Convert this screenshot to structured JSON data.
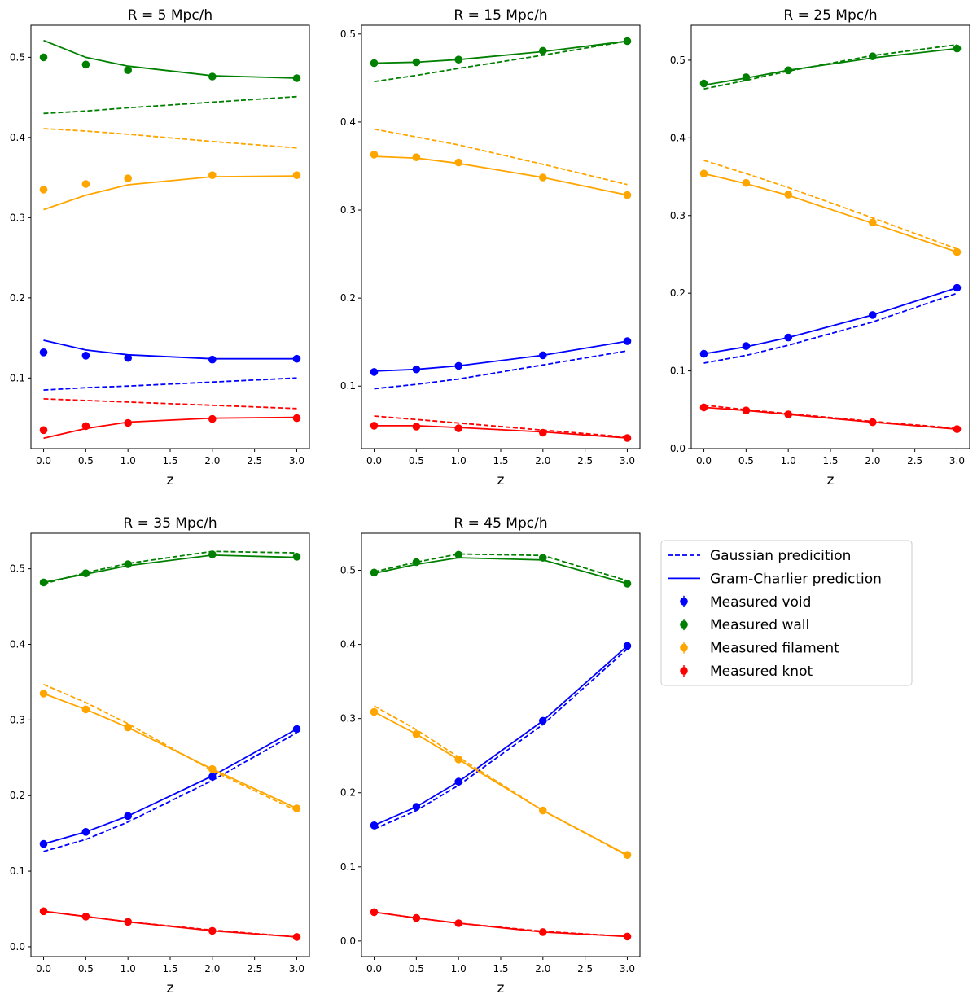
{
  "figure": {
    "xlabel": "z",
    "legend": {
      "location": "right of bottom row",
      "entries": [
        {
          "label": "Gaussian predicition",
          "kind": "dashed-line",
          "color": "#0000ff"
        },
        {
          "label": "Gram-Charlier prediction",
          "kind": "solid-line",
          "color": "#0000ff"
        },
        {
          "label": "Measured void",
          "kind": "marker",
          "color": "#0000ff"
        },
        {
          "label": "Measured wall",
          "kind": "marker",
          "color": "#008000"
        },
        {
          "label": "Measured filament",
          "kind": "marker",
          "color": "#ffa500"
        },
        {
          "label": "Measured knot",
          "kind": "marker",
          "color": "#ff0000"
        }
      ]
    },
    "colors": {
      "void": "#0000ff",
      "wall": "#008000",
      "filament": "#ffa500",
      "knot": "#ff0000"
    }
  },
  "chart_data": [
    {
      "type": "line",
      "title": "R = 5 Mpc/h",
      "xlabel": "z",
      "x": [
        0.0,
        0.5,
        1.0,
        2.0,
        3.0
      ],
      "xlim": [
        -0.15,
        3.15
      ],
      "ylim": [
        0.012,
        0.54
      ],
      "xticks": [
        0.0,
        0.5,
        1.0,
        1.5,
        2.0,
        2.5,
        3.0
      ],
      "xtick_labels": [
        "0.0",
        "0.5",
        "1.0",
        "1.5",
        "2.0",
        "2.5",
        "3.0"
      ],
      "yticks": [
        0.1,
        0.2,
        0.3,
        0.4,
        0.5
      ],
      "ytick_labels": [
        "0.1",
        "0.2",
        "0.3",
        "0.4",
        "0.5"
      ],
      "series": [
        {
          "name": "void",
          "color": "#0000ff",
          "gaussian": [
            0.085,
            0.088,
            0.09,
            0.095,
            0.1
          ],
          "gram_charlier": [
            0.147,
            0.135,
            0.129,
            0.124,
            0.124
          ],
          "measured": [
            0.132,
            0.128,
            0.125,
            0.123,
            0.124
          ]
        },
        {
          "name": "wall",
          "color": "#008000",
          "gaussian": [
            0.43,
            0.433,
            0.437,
            0.444,
            0.451
          ],
          "gram_charlier": [
            0.521,
            0.5,
            0.489,
            0.477,
            0.474
          ],
          "measured": [
            0.5,
            0.491,
            0.484,
            0.476,
            0.474
          ]
        },
        {
          "name": "filament",
          "color": "#ffa500",
          "gaussian": [
            0.411,
            0.408,
            0.404,
            0.395,
            0.387
          ],
          "gram_charlier": [
            0.31,
            0.328,
            0.341,
            0.351,
            0.352
          ],
          "measured": [
            0.335,
            0.342,
            0.349,
            0.353,
            0.353
          ]
        },
        {
          "name": "knot",
          "color": "#ff0000",
          "gaussian": [
            0.074,
            0.072,
            0.07,
            0.066,
            0.062
          ],
          "gram_charlier": [
            0.025,
            0.037,
            0.045,
            0.05,
            0.051
          ],
          "measured": [
            0.035,
            0.04,
            0.044,
            0.049,
            0.05
          ]
        }
      ]
    },
    {
      "type": "line",
      "title": "R = 15 Mpc/h",
      "xlabel": "z",
      "x": [
        0.0,
        0.5,
        1.0,
        2.0,
        3.0
      ],
      "xlim": [
        -0.15,
        3.15
      ],
      "ylim": [
        0.029,
        0.51
      ],
      "xticks": [
        0.0,
        0.5,
        1.0,
        1.5,
        2.0,
        2.5,
        3.0
      ],
      "xtick_labels": [
        "0.0",
        "0.5",
        "1.0",
        "1.5",
        "2.0",
        "2.5",
        "3.0"
      ],
      "yticks": [
        0.1,
        0.2,
        0.3,
        0.4,
        0.5
      ],
      "ytick_labels": [
        "0.1",
        "0.2",
        "0.3",
        "0.4",
        "0.5"
      ],
      "series": [
        {
          "name": "void",
          "color": "#0000ff",
          "gaussian": [
            0.097,
            0.102,
            0.108,
            0.124,
            0.14
          ],
          "gram_charlier": [
            0.117,
            0.119,
            0.123,
            0.135,
            0.151
          ],
          "measured": [
            0.116,
            0.119,
            0.123,
            0.135,
            0.151
          ]
        },
        {
          "name": "wall",
          "color": "#008000",
          "gaussian": [
            0.446,
            0.453,
            0.461,
            0.476,
            0.492
          ],
          "gram_charlier": [
            0.467,
            0.468,
            0.471,
            0.48,
            0.492
          ],
          "measured": [
            0.467,
            0.468,
            0.471,
            0.481,
            0.492
          ]
        },
        {
          "name": "filament",
          "color": "#ffa500",
          "gaussian": [
            0.392,
            0.383,
            0.374,
            0.352,
            0.329
          ],
          "gram_charlier": [
            0.361,
            0.359,
            0.353,
            0.337,
            0.317
          ],
          "measured": [
            0.363,
            0.36,
            0.354,
            0.337,
            0.317
          ]
        },
        {
          "name": "knot",
          "color": "#ff0000",
          "gaussian": [
            0.066,
            0.062,
            0.058,
            0.05,
            0.042
          ],
          "gram_charlier": [
            0.055,
            0.055,
            0.053,
            0.048,
            0.041
          ],
          "measured": [
            0.055,
            0.054,
            0.052,
            0.047,
            0.041
          ]
        }
      ]
    },
    {
      "type": "line",
      "title": "R = 25 Mpc/h",
      "xlabel": "z",
      "x": [
        0.0,
        0.5,
        1.0,
        2.0,
        3.0
      ],
      "xlim": [
        -0.15,
        3.15
      ],
      "ylim": [
        0.0,
        0.545
      ],
      "xticks": [
        0.0,
        0.5,
        1.0,
        1.5,
        2.0,
        2.5,
        3.0
      ],
      "xtick_labels": [
        "0.0",
        "0.5",
        "1.0",
        "1.5",
        "2.0",
        "2.5",
        "3.0"
      ],
      "yticks": [
        0.0,
        0.1,
        0.2,
        0.3,
        0.4,
        0.5
      ],
      "ytick_labels": [
        "0.0",
        "0.1",
        "0.2",
        "0.3",
        "0.4",
        "0.5"
      ],
      "series": [
        {
          "name": "void",
          "color": "#0000ff",
          "gaussian": [
            0.11,
            0.12,
            0.133,
            0.163,
            0.2
          ],
          "gram_charlier": [
            0.122,
            0.131,
            0.143,
            0.172,
            0.207
          ],
          "measured": [
            0.122,
            0.132,
            0.143,
            0.172,
            0.207
          ]
        },
        {
          "name": "wall",
          "color": "#008000",
          "gaussian": [
            0.463,
            0.474,
            0.486,
            0.506,
            0.52
          ],
          "gram_charlier": [
            0.468,
            0.477,
            0.487,
            0.503,
            0.515
          ],
          "measured": [
            0.47,
            0.478,
            0.487,
            0.505,
            0.515
          ]
        },
        {
          "name": "filament",
          "color": "#ffa500",
          "gaussian": [
            0.371,
            0.354,
            0.336,
            0.297,
            0.257
          ],
          "gram_charlier": [
            0.354,
            0.341,
            0.326,
            0.29,
            0.253
          ],
          "measured": [
            0.354,
            0.342,
            0.327,
            0.291,
            0.253
          ]
        },
        {
          "name": "knot",
          "color": "#ff0000",
          "gaussian": [
            0.056,
            0.05,
            0.045,
            0.035,
            0.026
          ],
          "gram_charlier": [
            0.053,
            0.049,
            0.044,
            0.034,
            0.025
          ],
          "measured": [
            0.053,
            0.049,
            0.044,
            0.034,
            0.025
          ]
        }
      ]
    },
    {
      "type": "line",
      "title": "R = 35 Mpc/h",
      "xlabel": "z",
      "x": [
        0.0,
        0.5,
        1.0,
        2.0,
        3.0
      ],
      "xlim": [
        -0.15,
        3.15
      ],
      "ylim": [
        -0.013,
        0.547
      ],
      "xticks": [
        0.0,
        0.5,
        1.0,
        1.5,
        2.0,
        2.5,
        3.0
      ],
      "xtick_labels": [
        "0.0",
        "0.5",
        "1.0",
        "1.5",
        "2.0",
        "2.5",
        "3.0"
      ],
      "yticks": [
        0.0,
        0.1,
        0.2,
        0.3,
        0.4,
        0.5
      ],
      "ytick_labels": [
        "0.0",
        "0.1",
        "0.2",
        "0.3",
        "0.4",
        "0.5"
      ],
      "series": [
        {
          "name": "void",
          "color": "#0000ff",
          "gaussian": [
            0.126,
            0.142,
            0.165,
            0.22,
            0.283
          ],
          "gram_charlier": [
            0.136,
            0.152,
            0.173,
            0.226,
            0.288
          ],
          "measured": [
            0.136,
            0.152,
            0.173,
            0.225,
            0.288
          ]
        },
        {
          "name": "wall",
          "color": "#008000",
          "gaussian": [
            0.48,
            0.495,
            0.507,
            0.523,
            0.521
          ],
          "gram_charlier": [
            0.482,
            0.493,
            0.504,
            0.518,
            0.515
          ],
          "measured": [
            0.482,
            0.494,
            0.506,
            0.519,
            0.516
          ]
        },
        {
          "name": "filament",
          "color": "#ffa500",
          "gaussian": [
            0.347,
            0.323,
            0.295,
            0.233,
            0.18
          ],
          "gram_charlier": [
            0.335,
            0.314,
            0.29,
            0.235,
            0.183
          ],
          "measured": [
            0.335,
            0.314,
            0.29,
            0.235,
            0.183
          ]
        },
        {
          "name": "knot",
          "color": "#ff0000",
          "gaussian": [
            0.047,
            0.04,
            0.033,
            0.022,
            0.013
          ],
          "gram_charlier": [
            0.047,
            0.04,
            0.033,
            0.021,
            0.013
          ],
          "measured": [
            0.047,
            0.04,
            0.033,
            0.021,
            0.013
          ]
        }
      ]
    },
    {
      "type": "line",
      "title": "R = 45 Mpc/h",
      "xlabel": "z",
      "x": [
        0.0,
        0.5,
        1.0,
        2.0,
        3.0
      ],
      "xlim": [
        -0.15,
        3.15
      ],
      "ylim": [
        -0.021,
        0.55
      ],
      "xticks": [
        0.0,
        0.5,
        1.0,
        1.5,
        2.0,
        2.5,
        3.0
      ],
      "xtick_labels": [
        "0.0",
        "0.5",
        "1.0",
        "1.5",
        "2.0",
        "2.5",
        "3.0"
      ],
      "yticks": [
        0.0,
        0.1,
        0.2,
        0.3,
        0.4,
        0.5
      ],
      "ytick_labels": [
        "0.0",
        "0.1",
        "0.2",
        "0.3",
        "0.4",
        "0.5"
      ],
      "series": [
        {
          "name": "void",
          "color": "#0000ff",
          "gaussian": [
            0.151,
            0.176,
            0.21,
            0.292,
            0.394
          ],
          "gram_charlier": [
            0.156,
            0.181,
            0.215,
            0.297,
            0.398
          ],
          "measured": [
            0.156,
            0.181,
            0.215,
            0.297,
            0.398
          ]
        },
        {
          "name": "wall",
          "color": "#008000",
          "gaussian": [
            0.498,
            0.511,
            0.522,
            0.52,
            0.486
          ],
          "gram_charlier": [
            0.496,
            0.508,
            0.517,
            0.514,
            0.482
          ],
          "measured": [
            0.497,
            0.511,
            0.521,
            0.517,
            0.482
          ]
        },
        {
          "name": "filament",
          "color": "#ffa500",
          "gaussian": [
            0.317,
            0.285,
            0.248,
            0.176,
            0.115
          ],
          "gram_charlier": [
            0.309,
            0.279,
            0.245,
            0.176,
            0.116
          ],
          "measured": [
            0.309,
            0.279,
            0.245,
            0.176,
            0.116
          ]
        },
        {
          "name": "knot",
          "color": "#ff0000",
          "gaussian": [
            0.039,
            0.031,
            0.024,
            0.013,
            0.006
          ],
          "gram_charlier": [
            0.039,
            0.031,
            0.024,
            0.012,
            0.006
          ],
          "measured": [
            0.039,
            0.031,
            0.024,
            0.012,
            0.006
          ]
        }
      ]
    }
  ]
}
